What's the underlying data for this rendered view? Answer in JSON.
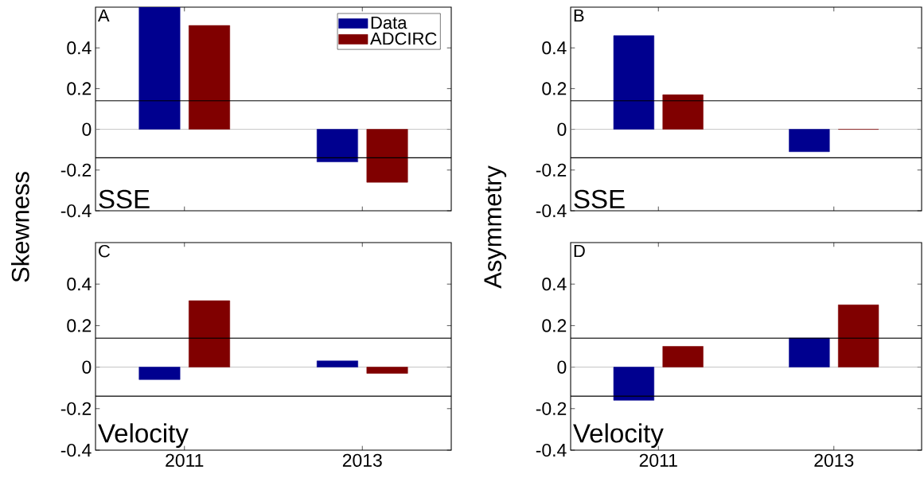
{
  "chart_data": [
    {
      "type": "bar",
      "categories": [
        "2011",
        "2013"
      ],
      "ylabel": "Skewness",
      "ylim": [
        -0.4,
        0.6
      ],
      "yticks": [
        -0.4,
        -0.2,
        0,
        0.2,
        0.4
      ],
      "tick_labels": "y",
      "legend": "top right",
      "series": [
        {
          "name": "Data",
          "color": "#00008f",
          "values": [
            0.6,
            -0.16
          ]
        },
        {
          "name": "ADCIRC",
          "color": "#800000",
          "values": [
            0.51,
            -0.26
          ]
        }
      ],
      "ref_lines": [
        {
          "axis": "y",
          "value": 0.14,
          "color": "#000000"
        },
        {
          "axis": "y",
          "value": -0.14,
          "color": "#000000"
        }
      ],
      "annotations": [
        "A",
        "SSE"
      ]
    },
    {
      "type": "bar",
      "categories": [
        "2011",
        "2013"
      ],
      "ylabel": "Asymmetry",
      "ylim": [
        -0.4,
        0.6
      ],
      "yticks": [
        -0.4,
        -0.2,
        0,
        0.2,
        0.4
      ],
      "tick_labels": "y",
      "series": [
        {
          "color": "#00008f",
          "values": [
            0.46,
            -0.11
          ]
        },
        {
          "color": "#800000",
          "values": [
            0.17,
            0
          ]
        }
      ],
      "ref_lines": [
        {
          "axis": "y",
          "value": 0.14,
          "color": "#000000"
        },
        {
          "axis": "y",
          "value": -0.14,
          "color": "#000000"
        }
      ],
      "annotations": [
        "B",
        "SSE"
      ]
    },
    {
      "type": "bar",
      "categories": [
        "2011",
        "2013"
      ],
      "ylim": [
        -0.4,
        0.6
      ],
      "yticks": [
        -0.4,
        -0.2,
        0,
        0.2,
        0.4
      ],
      "series": [
        {
          "color": "#00008f",
          "values": [
            -0.06,
            0.03
          ]
        },
        {
          "color": "#800000",
          "values": [
            0.32,
            -0.03
          ]
        }
      ],
      "ref_lines": [
        {
          "axis": "y",
          "value": 0.14,
          "color": "#000000"
        },
        {
          "axis": "y",
          "value": -0.14,
          "color": "#000000"
        }
      ],
      "annotations": [
        "C",
        "Velocity"
      ]
    },
    {
      "type": "bar",
      "categories": [
        "2011",
        "2013"
      ],
      "ylim": [
        -0.4,
        0.6
      ],
      "yticks": [
        -0.4,
        -0.2,
        0,
        0.2,
        0.4
      ],
      "series": [
        {
          "color": "#00008f",
          "values": [
            -0.16,
            0.14
          ]
        },
        {
          "color": "#800000",
          "values": [
            0.1,
            0.3
          ]
        }
      ],
      "ref_lines": [
        {
          "axis": "y",
          "value": 0.14,
          "color": "#000000"
        },
        {
          "axis": "y",
          "value": -0.14,
          "color": "#000000"
        }
      ],
      "annotations": [
        "D",
        "Velocity"
      ]
    }
  ]
}
